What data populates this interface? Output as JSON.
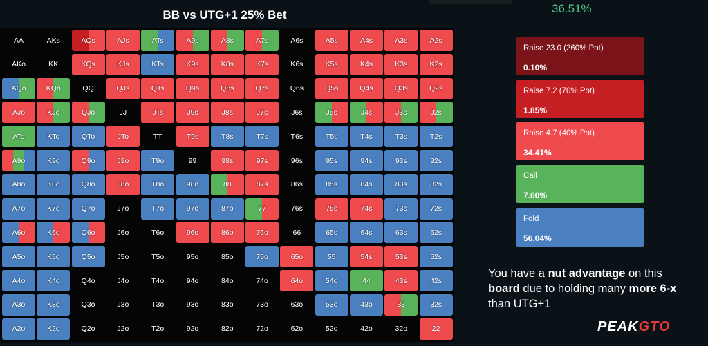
{
  "header": {
    "title": "BB vs UTG+1 25% Bet",
    "top_percentage": "36.51%"
  },
  "colors": {
    "raise_large": "#7a1418",
    "raise_medium": "#c51f24",
    "raise_small": "#ef4a4e",
    "call": "#58b35a",
    "fold": "#4a80c0",
    "empty": "#050505"
  },
  "legend": [
    {
      "name": "Raise 23.0 (260% Pot)",
      "percentage": "0.10%",
      "color": "#7a1418"
    },
    {
      "name": "Raise 7.2 (70% Pot)",
      "percentage": "1.85%",
      "color": "#c51f24"
    },
    {
      "name": "Raise 4.7 (40% Pot)",
      "percentage": "34.41%",
      "color": "#ef4a4e"
    },
    {
      "name": "Call",
      "percentage": "7.60%",
      "color": "#58b35a"
    },
    {
      "name": "Fold",
      "percentage": "56.04%",
      "color": "#4a80c0"
    }
  ],
  "advice": {
    "t1": "You have a ",
    "b1": "nut advantage",
    "t2": " on this ",
    "b2": "board",
    "t3": " due to holding many ",
    "b3": "more 6-x",
    "t4": " than UTG+1"
  },
  "logo": {
    "part1": "PEAK",
    "part2": "GTO"
  },
  "hands": [
    [
      "AA",
      "AKs",
      "AQs",
      "AJs",
      "ATs",
      "A9s",
      "A8s",
      "A7s",
      "A6s",
      "A5s",
      "A4s",
      "A3s",
      "A2s"
    ],
    [
      "AKo",
      "KK",
      "KQs",
      "KJs",
      "KTs",
      "K9s",
      "K8s",
      "K7s",
      "K6s",
      "K5s",
      "K4s",
      "K3s",
      "K2s"
    ],
    [
      "AQo",
      "KQo",
      "QQ",
      "QJs",
      "QTs",
      "Q9s",
      "Q8s",
      "Q7s",
      "Q6s",
      "Q5s",
      "Q4s",
      "Q3s",
      "Q2s"
    ],
    [
      "AJo",
      "KJo",
      "QJo",
      "JJ",
      "JTs",
      "J9s",
      "J8s",
      "J7s",
      "J6s",
      "J5s",
      "J4s",
      "J3s",
      "J2s"
    ],
    [
      "ATo",
      "KTo",
      "QTo",
      "JTo",
      "TT",
      "T9s",
      "T8s",
      "T7s",
      "T6s",
      "T5s",
      "T4s",
      "T3s",
      "T2s"
    ],
    [
      "A9o",
      "K9o",
      "Q9o",
      "J9o",
      "T9o",
      "99",
      "98s",
      "97s",
      "96s",
      "95s",
      "94s",
      "93s",
      "92s"
    ],
    [
      "A8o",
      "K8o",
      "Q8o",
      "J8o",
      "T8o",
      "98o",
      "88",
      "87s",
      "86s",
      "85s",
      "84s",
      "83s",
      "82s"
    ],
    [
      "A7o",
      "K7o",
      "Q7o",
      "J7o",
      "T7o",
      "97o",
      "87o",
      "77",
      "76s",
      "75s",
      "74s",
      "73s",
      "72s"
    ],
    [
      "A6o",
      "K6o",
      "Q6o",
      "J6o",
      "T6o",
      "96o",
      "86o",
      "76o",
      "66",
      "65s",
      "64s",
      "63s",
      "62s"
    ],
    [
      "A5o",
      "K5o",
      "Q5o",
      "J5o",
      "T5o",
      "95o",
      "85o",
      "75o",
      "65o",
      "55",
      "54s",
      "53s",
      "52s"
    ],
    [
      "A4o",
      "K4o",
      "Q4o",
      "J4o",
      "T4o",
      "94o",
      "84o",
      "74o",
      "64o",
      "54o",
      "44",
      "43s",
      "42s"
    ],
    [
      "A3o",
      "K3o",
      "Q3o",
      "J3o",
      "T3o",
      "93o",
      "83o",
      "73o",
      "63o",
      "53o",
      "43o",
      "33",
      "32s"
    ],
    [
      "A2o",
      "K2o",
      "Q2o",
      "J2o",
      "T2o",
      "92o",
      "82o",
      "72o",
      "62o",
      "52o",
      "42o",
      "32o",
      "22"
    ]
  ],
  "strategy": [
    [
      "E",
      "E",
      "FR",
      "R",
      "GB",
      "RG",
      "RG",
      "RG",
      "E",
      "R",
      "R",
      "R",
      "R"
    ],
    [
      "E",
      "E",
      "R",
      "R",
      "B",
      "R",
      "R",
      "R",
      "E",
      "R",
      "R",
      "R",
      "R"
    ],
    [
      "BG",
      "RG",
      "E",
      "R",
      "R",
      "R",
      "R",
      "R",
      "E",
      "R",
      "R",
      "R",
      "R"
    ],
    [
      "R",
      "RG",
      "RG",
      "E",
      "R",
      "R",
      "R",
      "R",
      "E",
      "GR",
      "GR",
      "RG",
      "RG"
    ],
    [
      "G",
      "B",
      "B",
      "R",
      "E",
      "R",
      "B",
      "B",
      "E",
      "B",
      "B",
      "B",
      "B"
    ],
    [
      "RGB",
      "B",
      "RB",
      "R",
      "B",
      "E",
      "R",
      "R",
      "E",
      "B",
      "B",
      "B",
      "B"
    ],
    [
      "B",
      "B",
      "B",
      "R",
      "B",
      "B",
      "GR",
      "R",
      "E",
      "B",
      "B",
      "B",
      "B"
    ],
    [
      "B",
      "B",
      "B",
      "E",
      "B",
      "B",
      "B",
      "GR",
      "E",
      "R",
      "R",
      "B",
      "B"
    ],
    [
      "BR",
      "BR",
      "BR",
      "E",
      "E",
      "R",
      "R",
      "R",
      "E",
      "B",
      "B",
      "B",
      "B"
    ],
    [
      "B",
      "B",
      "B",
      "E",
      "E",
      "E",
      "E",
      "B",
      "R",
      "B",
      "R",
      "R",
      "B"
    ],
    [
      "B",
      "B",
      "E",
      "E",
      "E",
      "E",
      "E",
      "E",
      "R",
      "B",
      "G",
      "R",
      "B"
    ],
    [
      "B",
      "B",
      "E",
      "E",
      "E",
      "E",
      "E",
      "E",
      "E",
      "B",
      "B",
      "RG",
      "B"
    ],
    [
      "B",
      "B",
      "E",
      "E",
      "E",
      "E",
      "E",
      "E",
      "E",
      "E",
      "E",
      "E",
      "R"
    ]
  ]
}
